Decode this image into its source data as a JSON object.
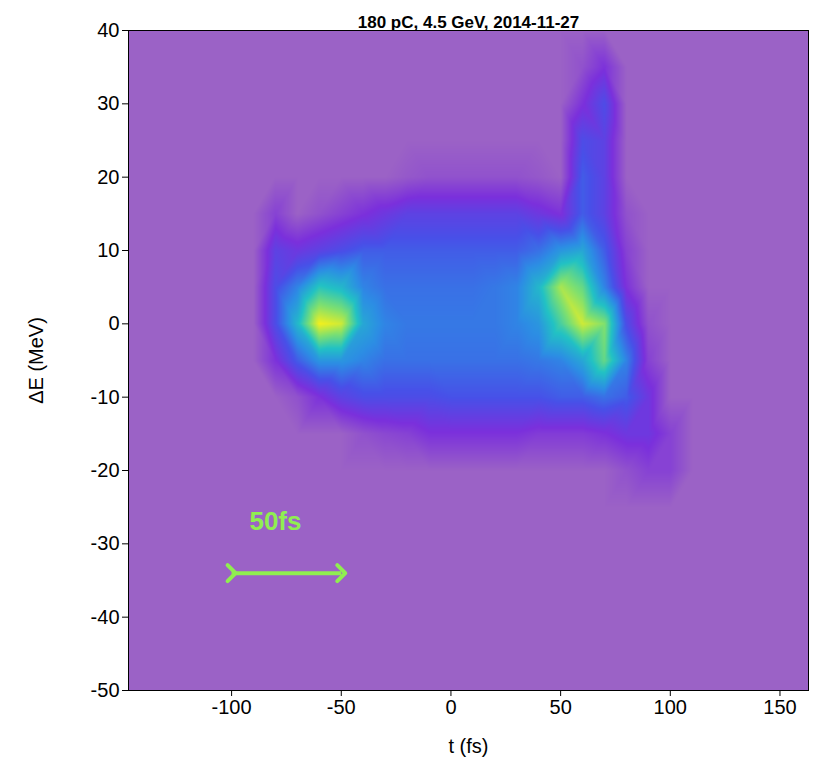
{
  "chart_data": {
    "type": "heatmap",
    "title": "180 pC, 4.5 GeV, 2014-11-27",
    "x_label": "t (fs)",
    "y_label": "ΔE (MeV)",
    "xlim": [
      -147,
      163
    ],
    "ylim": [
      -50,
      40
    ],
    "xticks": [
      -100,
      -50,
      0,
      50,
      100,
      150
    ],
    "yticks": [
      -50,
      -40,
      -30,
      -20,
      -10,
      0,
      10,
      20,
      30,
      40
    ],
    "x": [
      -90,
      -80,
      -70,
      -60,
      -50,
      -40,
      -30,
      -20,
      -10,
      0,
      10,
      20,
      30,
      40,
      50,
      60,
      70,
      80,
      90,
      100,
      110
    ],
    "y": [
      40,
      35,
      30,
      25,
      20,
      15,
      10,
      5,
      0,
      -5,
      -10,
      -15,
      -20,
      -25
    ],
    "cells": [
      [
        0,
        0,
        0,
        0,
        0,
        0,
        0,
        0,
        0,
        0,
        0,
        0,
        0,
        0,
        0,
        0,
        0,
        0,
        0,
        0,
        0
      ],
      [
        0,
        0,
        0,
        0,
        0,
        0,
        0,
        0,
        0,
        0,
        0,
        0,
        0,
        0,
        0,
        0.05,
        0.15,
        0,
        0,
        0,
        0
      ],
      [
        0,
        0,
        0,
        0,
        0,
        0,
        0,
        0,
        0,
        0,
        0,
        0,
        0,
        0,
        0,
        0.15,
        0.3,
        0,
        0,
        0,
        0
      ],
      [
        0,
        0,
        0,
        0,
        0,
        0,
        0,
        0,
        0,
        0,
        0,
        0,
        0,
        0,
        0,
        0.3,
        0.25,
        0,
        0,
        0,
        0
      ],
      [
        0,
        0,
        0,
        0,
        0,
        0,
        0,
        0.03,
        0.05,
        0.05,
        0.05,
        0.05,
        0.05,
        0.03,
        0,
        0.35,
        0.25,
        0,
        0,
        0,
        0
      ],
      [
        0,
        0.1,
        0,
        0.05,
        0.1,
        0.15,
        0.2,
        0.25,
        0.25,
        0.25,
        0.25,
        0.25,
        0.25,
        0.2,
        0.15,
        0.35,
        0.25,
        0.05,
        0,
        0,
        0
      ],
      [
        0,
        0.25,
        0.2,
        0.25,
        0.3,
        0.35,
        0.35,
        0.35,
        0.35,
        0.35,
        0.35,
        0.35,
        0.35,
        0.4,
        0.5,
        0.55,
        0.35,
        0.1,
        0,
        0,
        0
      ],
      [
        0,
        0.3,
        0.45,
        0.65,
        0.6,
        0.45,
        0.4,
        0.4,
        0.4,
        0.4,
        0.4,
        0.42,
        0.45,
        0.6,
        0.85,
        0.75,
        0.45,
        0.15,
        0,
        0,
        0
      ],
      [
        0,
        0.3,
        0.6,
        0.95,
        0.9,
        0.55,
        0.45,
        0.42,
        0.42,
        0.42,
        0.42,
        0.42,
        0.45,
        0.5,
        0.7,
        0.9,
        0.8,
        0.3,
        0.05,
        0,
        0
      ],
      [
        0,
        0.15,
        0.35,
        0.5,
        0.5,
        0.45,
        0.4,
        0.4,
        0.4,
        0.4,
        0.4,
        0.4,
        0.4,
        0.42,
        0.45,
        0.55,
        0.75,
        0.45,
        0.1,
        0,
        0
      ],
      [
        0,
        0,
        0.05,
        0.15,
        0.25,
        0.3,
        0.3,
        0.3,
        0.3,
        0.32,
        0.32,
        0.32,
        0.32,
        0.32,
        0.35,
        0.35,
        0.4,
        0.35,
        0.2,
        0,
        0
      ],
      [
        0,
        0,
        0,
        0,
        0,
        0.05,
        0.08,
        0.1,
        0.15,
        0.15,
        0.15,
        0.15,
        0.15,
        0.12,
        0.12,
        0.12,
        0.15,
        0.2,
        0.2,
        0.1,
        0
      ],
      [
        0,
        0,
        0,
        0,
        0,
        0,
        0,
        0,
        0,
        0,
        0,
        0,
        0,
        0,
        0,
        0,
        0,
        0.05,
        0.1,
        0.1,
        0
      ],
      [
        0,
        0,
        0,
        0,
        0,
        0,
        0,
        0,
        0,
        0,
        0,
        0,
        0,
        0,
        0,
        0,
        0,
        0,
        0,
        0,
        0
      ]
    ],
    "annotations": [
      {
        "text": "50fs",
        "x": -80,
        "y": -27,
        "color": "#90ee50",
        "arrow": {
          "x1": -100,
          "x2": -50,
          "y": -34
        }
      }
    ]
  }
}
